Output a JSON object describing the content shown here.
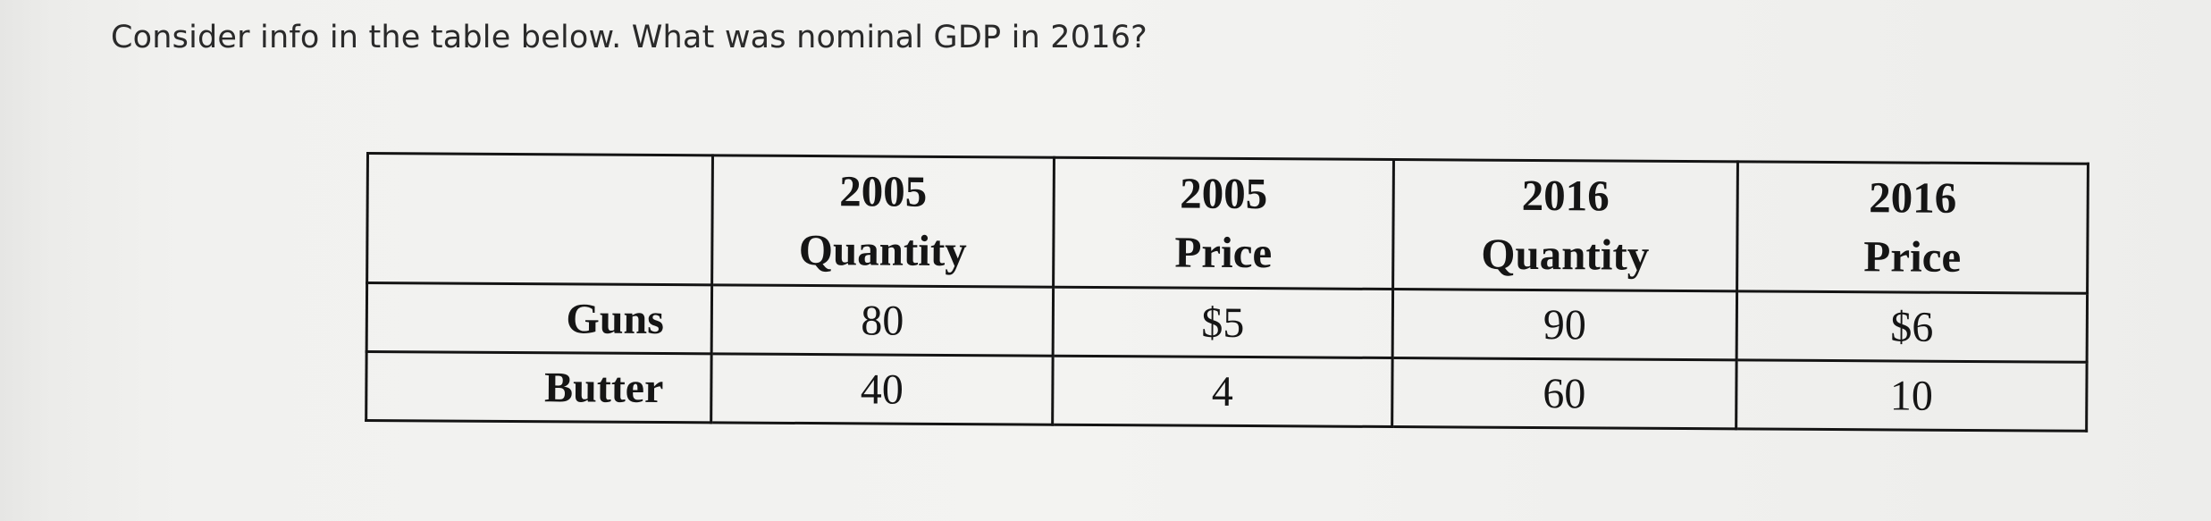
{
  "question": "Consider info in the table below. What was nominal GDP in 2016?",
  "table": {
    "corner": "",
    "columns": [
      {
        "year": "2005",
        "label": "Quantity"
      },
      {
        "year": "2005",
        "label": "Price"
      },
      {
        "year": "2016",
        "label": "Quantity"
      },
      {
        "year": "2016",
        "label": "Price"
      }
    ],
    "rows": [
      {
        "name": "Guns",
        "cells": [
          "80",
          "$5",
          "90",
          "$6"
        ]
      },
      {
        "name": "Butter",
        "cells": [
          "40",
          "4",
          "60",
          "10"
        ]
      }
    ]
  }
}
